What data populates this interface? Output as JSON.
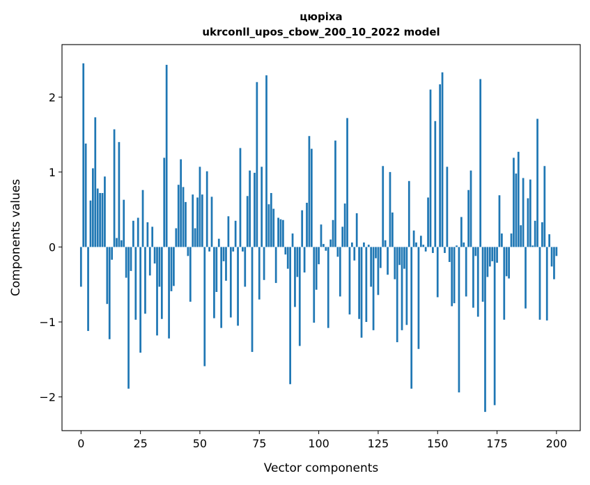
{
  "chart_data": {
    "type": "bar",
    "title_line1": "цюріха",
    "title_line2": "ukrconll_upos_cbow_200_10_2022 model",
    "xlabel": "Vector components",
    "ylabel": "Components values",
    "xlim": [
      -8,
      210
    ],
    "ylim": [
      -2.45,
      2.7
    ],
    "xticks": [
      0,
      25,
      50,
      75,
      100,
      125,
      150,
      175,
      200
    ],
    "yticks": [
      -2,
      -1,
      0,
      1,
      2
    ],
    "ytick_labels": [
      "−2",
      "−1",
      "0",
      "1",
      "2"
    ],
    "grid": false,
    "bar_color": "#1f77b4",
    "values": [
      -0.53,
      2.45,
      1.38,
      -1.12,
      0.62,
      1.05,
      1.73,
      0.78,
      0.72,
      0.72,
      0.94,
      -0.76,
      -1.23,
      -0.17,
      1.57,
      0.12,
      1.4,
      0.09,
      0.63,
      -0.41,
      -1.89,
      -0.32,
      0.35,
      -0.97,
      0.39,
      -1.41,
      0.76,
      -0.89,
      0.33,
      -0.38,
      0.27,
      -0.22,
      -1.18,
      -0.53,
      -0.96,
      1.19,
      2.43,
      -1.22,
      -0.59,
      -0.52,
      0.25,
      0.83,
      1.17,
      0.8,
      0.6,
      -0.12,
      -0.73,
      0.7,
      0.25,
      0.66,
      1.07,
      0.7,
      -1.59,
      1.01,
      -0.06,
      0.67,
      -0.95,
      -0.6,
      0.11,
      -1.08,
      -0.19,
      -0.45,
      0.41,
      -0.94,
      -0.06,
      0.35,
      -1.05,
      1.32,
      -0.06,
      -0.53,
      0.68,
      1.02,
      -1.4,
      0.99,
      2.2,
      -0.7,
      1.07,
      -0.44,
      2.29,
      0.57,
      0.72,
      0.51,
      -0.48,
      0.39,
      0.37,
      0.36,
      -0.1,
      -0.29,
      -1.83,
      0.18,
      -0.8,
      -0.4,
      -1.32,
      0.49,
      -0.34,
      0.59,
      1.48,
      1.31,
      -1.01,
      -0.57,
      -0.23,
      0.3,
      0.04,
      -0.05,
      -1.08,
      0.1,
      0.36,
      1.42,
      -0.13,
      -0.66,
      0.27,
      0.58,
      1.72,
      -0.9,
      0.06,
      -0.18,
      0.45,
      -0.96,
      -1.21,
      0.06,
      -1.0,
      0.03,
      -0.53,
      -1.11,
      -0.15,
      -0.64,
      -0.28,
      1.08,
      0.09,
      -0.37,
      1.0,
      0.46,
      -0.43,
      -1.27,
      -0.24,
      -1.11,
      -0.29,
      -1.04,
      0.88,
      -1.89,
      0.22,
      0.06,
      -1.36,
      0.15,
      0.03,
      -0.06,
      0.66,
      2.1,
      -0.08,
      1.68,
      -0.67,
      2.17,
      2.33,
      -0.08,
      1.07,
      -0.2,
      -0.79,
      -0.75,
      0.02,
      -1.94,
      0.4,
      0.06,
      -0.66,
      0.76,
      1.02,
      -0.81,
      -0.12,
      -0.93,
      2.24,
      -0.73,
      -2.2,
      -0.4,
      -0.26,
      -0.19,
      -2.11,
      -0.21,
      0.69,
      0.18,
      -0.97,
      -0.39,
      -0.42,
      0.18,
      1.19,
      0.98,
      1.27,
      0.29,
      0.92,
      -0.82,
      0.65,
      0.9,
      0.02,
      0.35,
      1.71,
      -0.97,
      0.33,
      1.08,
      -0.98,
      0.17,
      -0.26,
      -0.43,
      -0.12
    ]
  }
}
